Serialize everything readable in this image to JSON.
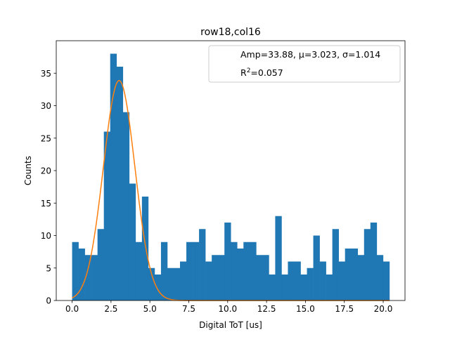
{
  "chart_data": {
    "type": "bar",
    "title": "row18,col16",
    "xlabel": "Digital ToT [us]",
    "ylabel": "Counts",
    "xlim": [
      -1.02,
      21.4
    ],
    "ylim": [
      0,
      40
    ],
    "x_ticks": [
      0,
      2.5,
      5,
      7.5,
      10,
      12.5,
      15,
      17.5,
      20
    ],
    "x_tick_labels": [
      "0.0",
      "2.5",
      "5.0",
      "7.5",
      "10.0",
      "12.5",
      "15.0",
      "17.5",
      "20.0"
    ],
    "y_ticks": [
      0,
      5,
      10,
      15,
      20,
      25,
      30,
      35
    ],
    "y_tick_labels": [
      "0",
      "5",
      "10",
      "15",
      "20",
      "25",
      "30",
      "35"
    ],
    "bin_start": 0.0,
    "bin_width": 0.408,
    "values": [
      9,
      8,
      7,
      7,
      11,
      26,
      38,
      36,
      29,
      18,
      9,
      16,
      5,
      4,
      9,
      5,
      5,
      6,
      9,
      9,
      11,
      6,
      7,
      7,
      12,
      9,
      8,
      9,
      9,
      7,
      7,
      4,
      13,
      4,
      6,
      6,
      4,
      5,
      10,
      6,
      4,
      11,
      6,
      8,
      8,
      7,
      11,
      12,
      7,
      6
    ],
    "fit": {
      "name": "Gaussian fit",
      "amp": 33.88,
      "mu": 3.023,
      "sigma": 1.014,
      "x_range": [
        0,
        20.4
      ],
      "color": "#ff7f0e"
    },
    "bar_color": "#1f77b4",
    "legend": {
      "position": "top-right",
      "line1": "Amp=33.88, μ=3.023, σ=1.014",
      "line2_base": "R",
      "line2_sup": "2",
      "line2_rest": "=0.057"
    },
    "grid": false
  }
}
